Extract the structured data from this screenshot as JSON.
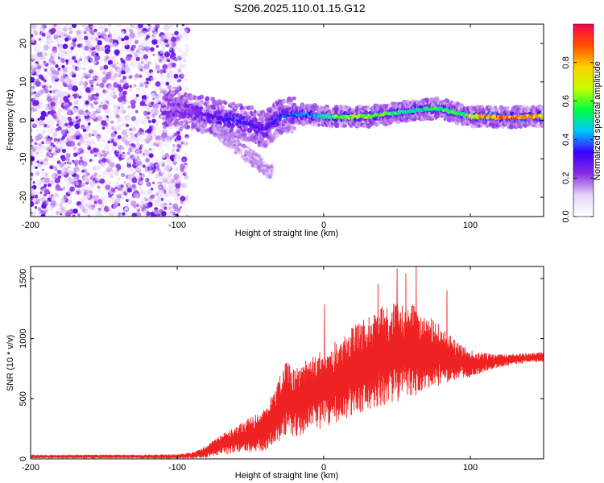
{
  "title": "S206.2025.110.01.15.G12",
  "chart_data": [
    {
      "type": "heatmap",
      "xlabel": "Height of straight line (km)",
      "ylabel": "Frequency (Hz)",
      "xlim": [
        -200,
        150
      ],
      "ylim": [
        -25,
        25
      ],
      "xticks": [
        -200,
        -100,
        0,
        100
      ],
      "yticks": [
        -20,
        -10,
        0,
        10,
        20
      ],
      "grid": false,
      "colorbar": {
        "label": "Normalized spectral amplitude",
        "range": [
          0.0,
          1.0
        ],
        "ticks": [
          0.0,
          0.2,
          0.4,
          0.6,
          0.8
        ],
        "tick_labels": [
          "0.0",
          "0.2",
          "0.4",
          "0.6",
          "0.8"
        ],
        "colormap": [
          "#ffffff",
          "#e6d4f7",
          "#8a2be2",
          "#3a00ff",
          "#00c8ff",
          "#00ff40",
          "#c8ff00",
          "#ffd000",
          "#ff5000",
          "#ff0050"
        ]
      },
      "noise_region_x": [
        -200,
        -93
      ],
      "ridge": {
        "x": [
          -110,
          -100,
          -90,
          -80,
          -70,
          -60,
          -50,
          -40,
          -30,
          -20,
          -10,
          0,
          10,
          20,
          30,
          40,
          50,
          60,
          70,
          80,
          90,
          100,
          110,
          120,
          130,
          140,
          150
        ],
        "frequency": [
          3.0,
          3.0,
          2.0,
          1.5,
          0.5,
          0.0,
          -1.0,
          -2.5,
          1.0,
          1.5,
          1.5,
          1.0,
          1.0,
          1.0,
          1.0,
          1.5,
          2.0,
          2.5,
          3.0,
          3.0,
          2.0,
          1.0,
          1.0,
          0.8,
          0.8,
          1.0,
          1.0
        ],
        "amplitude": [
          0.15,
          0.2,
          0.25,
          0.3,
          0.35,
          0.4,
          0.35,
          0.3,
          0.4,
          0.45,
          0.45,
          0.55,
          0.65,
          0.7,
          0.7,
          0.65,
          0.6,
          0.55,
          0.55,
          0.6,
          0.6,
          0.7,
          0.9,
          0.95,
          0.95,
          0.9,
          0.8
        ]
      }
    },
    {
      "type": "line",
      "xlabel": "Height of straight line (km)",
      "ylabel": "SNR (10 * v/v)",
      "xlim": [
        -200,
        150
      ],
      "ylim": [
        0,
        1600
      ],
      "xticks": [
        -200,
        -100,
        0,
        100
      ],
      "yticks": [
        0,
        500,
        1000,
        1500
      ],
      "grid": false,
      "color": "#ee2222",
      "x": [
        -200,
        -175,
        -150,
        -125,
        -100,
        -90,
        -80,
        -70,
        -60,
        -50,
        -40,
        -30,
        -25,
        -20,
        -15,
        -10,
        0,
        10,
        20,
        30,
        40,
        50,
        60,
        70,
        80,
        90,
        100,
        110,
        120,
        130,
        140,
        150
      ],
      "mean": [
        20,
        20,
        20,
        20,
        20,
        30,
        60,
        120,
        160,
        200,
        250,
        420,
        520,
        470,
        490,
        560,
        580,
        650,
        730,
        800,
        850,
        880,
        900,
        890,
        860,
        820,
        790,
        800,
        820,
        830,
        840,
        850
      ],
      "spread": [
        12,
        12,
        12,
        12,
        15,
        20,
        45,
        75,
        100,
        130,
        170,
        250,
        300,
        260,
        260,
        280,
        300,
        320,
        340,
        360,
        380,
        380,
        350,
        300,
        220,
        150,
        100,
        70,
        50,
        40,
        35,
        35
      ],
      "spikes": [
        {
          "x": 0.5,
          "y": 1280
        },
        {
          "x": 37,
          "y": 1450
        },
        {
          "x": 50,
          "y": 1580
        },
        {
          "x": 56,
          "y": 1540
        },
        {
          "x": 63,
          "y": 1600
        },
        {
          "x": 84,
          "y": 1400
        }
      ]
    }
  ]
}
